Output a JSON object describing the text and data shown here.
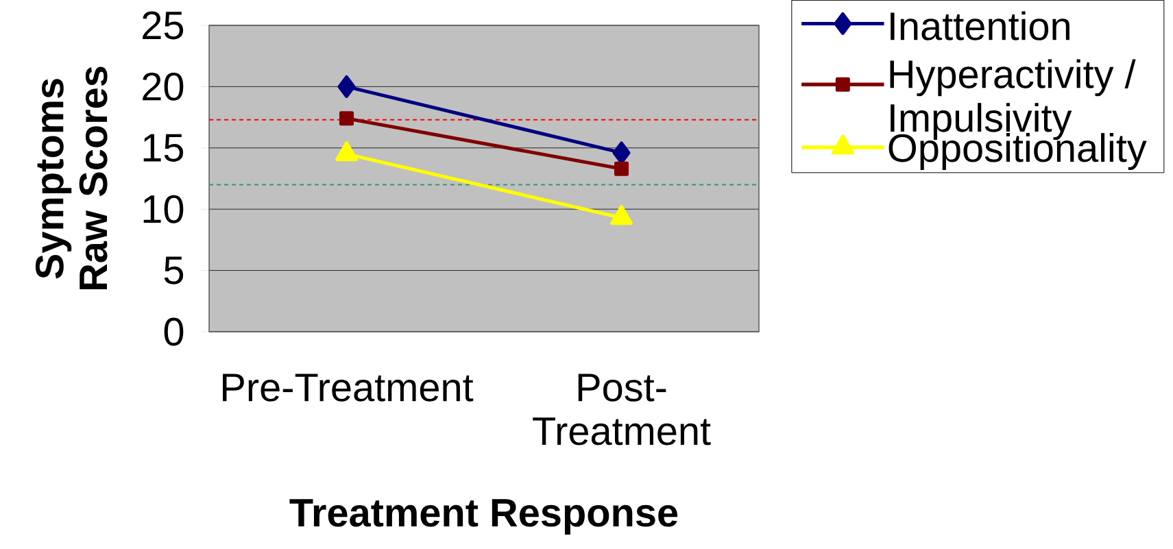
{
  "chart_data": {
    "type": "line",
    "xlabel": "Treatment Response",
    "ylabel": "Symptoms Raw Scores",
    "categories": [
      "Pre-Treatment",
      "Post-Treatment"
    ],
    "series": [
      {
        "name": "Inattention",
        "color": "#000080",
        "marker": "diamond",
        "values": [
          20,
          14.6
        ]
      },
      {
        "name": "Hyperactivity / Impulsivity",
        "color": "#800000",
        "marker": "square",
        "values": [
          17.4,
          13.3
        ]
      },
      {
        "name": "Oppositionality",
        "color": "#ffff00",
        "marker": "triangle",
        "values": [
          14.5,
          9.3
        ]
      }
    ],
    "ylim": [
      0,
      25
    ],
    "yticks": [
      0,
      5,
      10,
      15,
      20,
      25
    ],
    "grid": "y",
    "legend": "right",
    "ref_lines": [
      {
        "axis": "y",
        "value": 17.3,
        "color": "#ff0000",
        "line_style": "dashed"
      },
      {
        "axis": "y",
        "value": 12,
        "color": "#339966",
        "line_style": "dashed"
      }
    ]
  }
}
